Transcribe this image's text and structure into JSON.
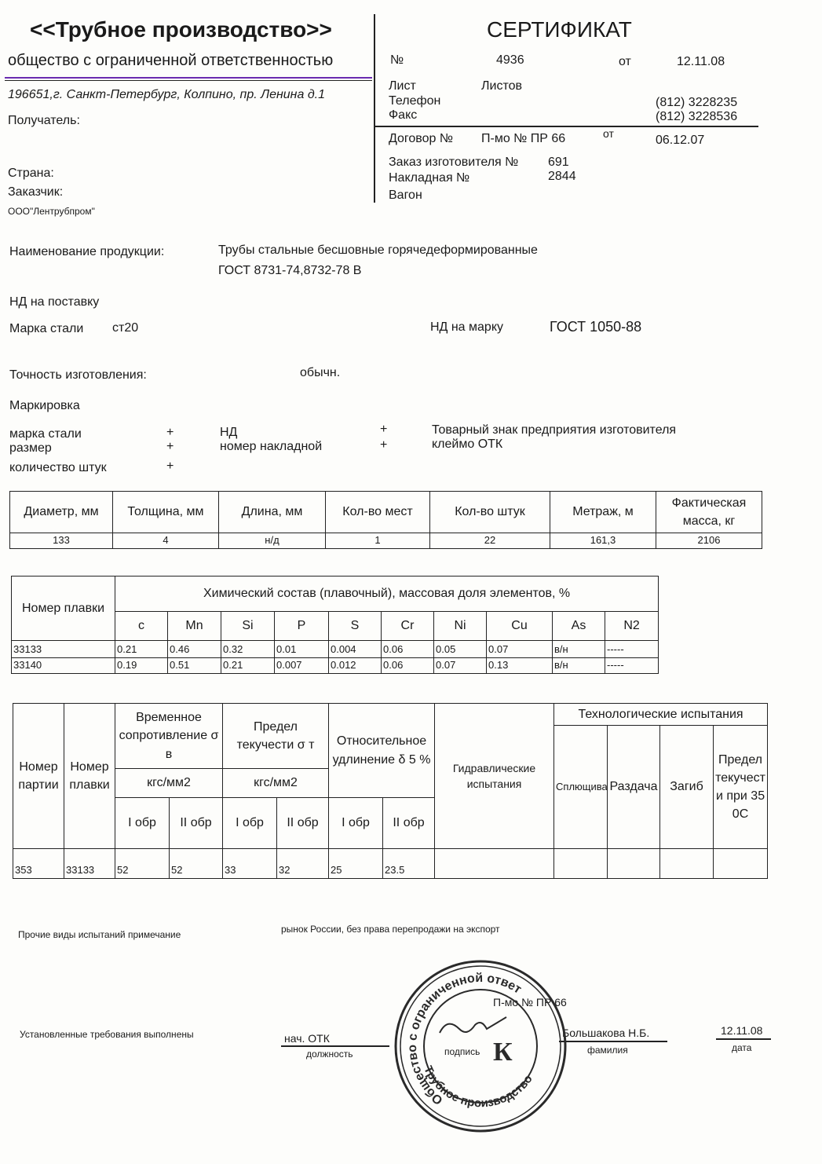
{
  "header": {
    "company_name": "<<Трубное производство>>",
    "company_type": "общество с ограниченной ответственностью",
    "address": "196651,г. Санкт-Петербург, Колпино, пр. Ленина д.1",
    "recipient_label": "Получатель:",
    "country_label": "Страна:",
    "customer_label": "Заказчик:",
    "customer_value": "ООО\"Лентрубпром\""
  },
  "certificate": {
    "title": "СЕРТИФИКАТ",
    "number_label": "№",
    "number": "4936",
    "from_label": "от",
    "date": "12.11.08",
    "sheet_label": "Лист",
    "sheets_label": "Листов",
    "phone_label": "Телефон",
    "phone": "(812) 3228235",
    "fax_label": "Факс",
    "fax": "(812) 3228536",
    "contract_label": "Договор №",
    "contract": "П-мо № ПР 66",
    "contract_from_label": "от",
    "contract_date": "06.12.07",
    "order_label": "Заказ изготовителя №",
    "order": "691",
    "invoice_label": "Накладная №",
    "invoice": "2844",
    "wagon_label": "Вагон"
  },
  "product": {
    "name_label": "Наименование продукции:",
    "name_line1": "Трубы стальные бесшовные горячедеформированные",
    "name_line2": "ГОСТ 8731-74,8732-78 В",
    "nd_supply_label": "НД на поставку",
    "steel_grade_label": "Марка стали",
    "steel_grade": "ст20",
    "nd_grade_label": "НД на марку",
    "nd_grade": "ГОСТ  1050-88",
    "accuracy_label": "Точность изготовления:",
    "accuracy": "обычн.",
    "marking_label": "Маркировка"
  },
  "marking": [
    {
      "label": "марка стали",
      "mark": "+"
    },
    {
      "label": "размер",
      "mark": "+"
    },
    {
      "label": "количество штук",
      "mark": "+"
    },
    {
      "label": "НД",
      "mark": "+"
    },
    {
      "label": "номер накладной",
      "mark": "+"
    },
    {
      "label": "Товарный знак предприятия изготовителя",
      "mark": ""
    },
    {
      "label": "клеймо ОТК",
      "mark": ""
    }
  ],
  "dimensions_table": {
    "headers": [
      "Диаметр, мм",
      "Толщина, мм",
      "Длина, мм",
      "Кол-во мест",
      "Кол-во штук",
      "Метраж, м",
      "Фактическая масса, кг"
    ],
    "row": [
      "133",
      "4",
      "н/д",
      "1",
      "22",
      "161,3",
      "2106"
    ]
  },
  "chem_table": {
    "heat_header": "Номер плавки",
    "title": "Химический состав (плавочный), массовая доля элементов, %",
    "elements": [
      "c",
      "Mn",
      "Si",
      "P",
      "S",
      "Cr",
      "Ni",
      "Cu",
      "As",
      "N2"
    ],
    "rows": [
      [
        "33133",
        "0.21",
        "0.46",
        "0.32",
        "0.01",
        "0.004",
        "0.06",
        "0.05",
        "0.07",
        "в/н",
        "-----"
      ],
      [
        "33140",
        "0.19",
        "0.51",
        "0.21",
        "0.007",
        "0.012",
        "0.06",
        "0.07",
        "0.13",
        "в/н",
        "-----"
      ]
    ]
  },
  "mech_table": {
    "batch_header": "Номер партии",
    "heat_header": "Номер плавки",
    "tensile_header": "Временное сопротивление σ в",
    "yield_header": "Предел текучести σ т",
    "elong_header": "Относительное удлинение δ 5 %",
    "unit": "кгс/мм2",
    "hydro_header": "Гидравлические испытания",
    "tech_header": "Технологические испытания",
    "tech_cols": [
      "Сплющивание",
      "Раздача",
      "Загиб",
      "Предел текучести при 350С"
    ],
    "sample1": "I обр",
    "sample2": "II обр",
    "row": [
      "353",
      "33133",
      "52",
      "52",
      "33",
      "32",
      "25",
      "23.5",
      "",
      "",
      "",
      "",
      ""
    ]
  },
  "footer": {
    "other_tests": "Прочие виды испытаний  примечание",
    "note": "рынок  России, без права перепродажи на экспорт",
    "requirements": "Установленные требования выполнены",
    "position": "нач. ОТК",
    "position_label": "должность",
    "signature_label": "подпись",
    "stamp_ref": "П-мо № ПР 66",
    "surname": "Большакова  Н.Б.",
    "surname_label": "фамилия",
    "sign_date": "12.11.08",
    "date_label": "дата",
    "stamp_text_top": "Общество с ограниченной ответственностью",
    "stamp_text_bottom": "Трубное производство",
    "stamp_letter": "К"
  },
  "colors": {
    "ink": "#1a1a1a",
    "stamp": "#2a2a2a",
    "scan_fringe": "#8b2be0"
  }
}
